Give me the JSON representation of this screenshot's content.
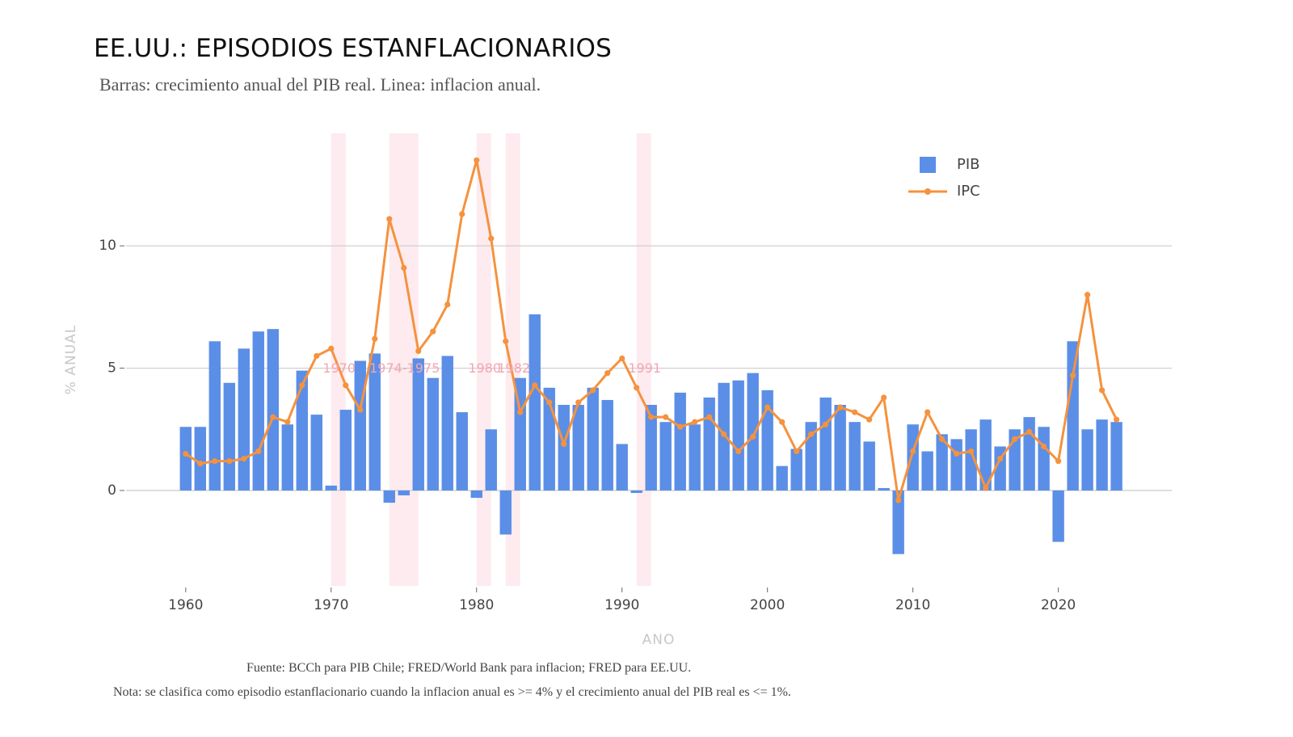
{
  "header": {
    "title": "EE.UU.: EPISODIOS ESTANFLACIONARIOS",
    "subtitle": "Barras: crecimiento anual del PIB real. Linea: inflacion anual."
  },
  "footer": {
    "source": "Fuente: BCCh para PIB Chile; FRED/World Bank para inflacion; FRED para EE.UU.",
    "note": "Nota: se clasifica como episodio estanflacionario cuando la inflacion anual es >= 4% y el crecimiento anual del PIB real es <= 1%."
  },
  "chart_data": {
    "type": "bar",
    "title": "EE.UU.: EPISODIOS ESTANFLACIONARIOS",
    "xlabel": "ANO",
    "ylabel": "% ANUAL",
    "xlim": [
      1955.9,
      2027.8
    ],
    "ylim": [
      -3.9,
      14.6
    ],
    "x_ticks": [
      1960,
      1970,
      1980,
      1990,
      2000,
      2010,
      2020
    ],
    "y_ticks": [
      0,
      5,
      10
    ],
    "grid": true,
    "legend_position": "top-right",
    "colors": {
      "bar": "#5b8ee6",
      "line": "#f5923e",
      "episode": "#fde8ec",
      "episode_label": "#f4a6b4",
      "grid": "#d0d0d0"
    },
    "x": [
      1960,
      1961,
      1962,
      1963,
      1964,
      1965,
      1966,
      1967,
      1968,
      1969,
      1970,
      1971,
      1972,
      1973,
      1974,
      1975,
      1976,
      1977,
      1978,
      1979,
      1980,
      1981,
      1982,
      1983,
      1984,
      1985,
      1986,
      1987,
      1988,
      1989,
      1990,
      1991,
      1992,
      1993,
      1994,
      1995,
      1996,
      1997,
      1998,
      1999,
      2000,
      2001,
      2002,
      2003,
      2004,
      2005,
      2006,
      2007,
      2008,
      2009,
      2010,
      2011,
      2012,
      2013,
      2014,
      2015,
      2016,
      2017,
      2018,
      2019,
      2020,
      2021,
      2022,
      2023,
      2024
    ],
    "series": [
      {
        "name": "PIB",
        "type": "bar",
        "values": [
          2.6,
          2.6,
          6.1,
          4.4,
          5.8,
          6.5,
          6.6,
          2.7,
          4.9,
          3.1,
          0.2,
          3.3,
          5.3,
          5.6,
          -0.5,
          -0.2,
          5.4,
          4.6,
          5.5,
          3.2,
          -0.3,
          2.5,
          -1.8,
          4.6,
          7.2,
          4.2,
          3.5,
          3.5,
          4.2,
          3.7,
          1.9,
          -0.1,
          3.5,
          2.8,
          4.0,
          2.7,
          3.8,
          4.4,
          4.5,
          4.8,
          4.1,
          1.0,
          1.7,
          2.8,
          3.8,
          3.5,
          2.8,
          2.0,
          0.1,
          -2.6,
          2.7,
          1.6,
          2.3,
          2.1,
          2.5,
          2.9,
          1.8,
          2.5,
          3.0,
          2.6,
          -2.1,
          6.1,
          2.5,
          2.9,
          2.8
        ]
      },
      {
        "name": "IPC",
        "type": "line",
        "values": [
          1.5,
          1.1,
          1.2,
          1.2,
          1.3,
          1.6,
          3.0,
          2.8,
          4.3,
          5.5,
          5.8,
          4.3,
          3.3,
          6.2,
          11.1,
          9.1,
          5.7,
          6.5,
          7.6,
          11.3,
          13.5,
          10.3,
          6.1,
          3.2,
          4.3,
          3.6,
          1.9,
          3.6,
          4.1,
          4.8,
          5.4,
          4.2,
          3.0,
          3.0,
          2.6,
          2.8,
          3.0,
          2.3,
          1.6,
          2.2,
          3.4,
          2.8,
          1.6,
          2.3,
          2.7,
          3.4,
          3.2,
          2.9,
          3.8,
          -0.4,
          1.6,
          3.2,
          2.1,
          1.5,
          1.6,
          0.1,
          1.3,
          2.1,
          2.4,
          1.8,
          1.2,
          4.7,
          8.0,
          4.1,
          2.9
        ]
      }
    ],
    "episodes": [
      {
        "label": "1970",
        "start": 1970,
        "end": 1970
      },
      {
        "label": "1974-1975",
        "start": 1974,
        "end": 1975
      },
      {
        "label": "1980",
        "start": 1980,
        "end": 1980
      },
      {
        "label": "1982",
        "start": 1982,
        "end": 1982
      },
      {
        "label": "1991",
        "start": 1991,
        "end": 1991
      }
    ]
  }
}
